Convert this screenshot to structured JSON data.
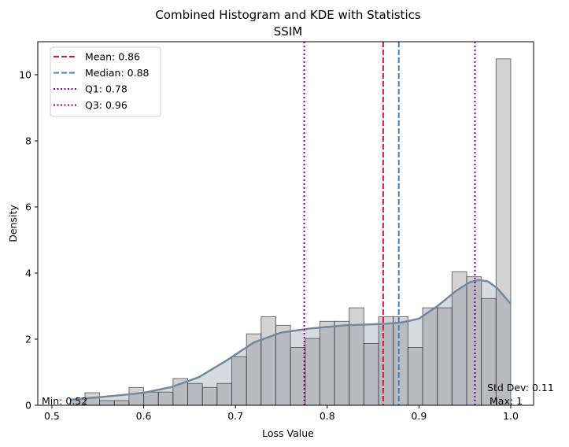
{
  "chart_data": {
    "type": "bar",
    "title": "Combined Histogram and KDE with Statistics",
    "subtitle": "SSIM",
    "xlabel": "Loss Value",
    "ylabel": "Density",
    "xlim": [
      0.4846,
      1.0249
    ],
    "ylim": [
      0,
      11.0
    ],
    "xticks": [
      "0.5",
      "0.6",
      "0.7",
      "0.8",
      "0.9",
      "1.0"
    ],
    "xtick_values": [
      0.5,
      0.6,
      0.7,
      0.8,
      0.9,
      1.0
    ],
    "yticks": [
      "0",
      "2",
      "4",
      "6",
      "8",
      "10"
    ],
    "ytick_values": [
      0,
      2,
      4,
      6,
      8,
      10
    ],
    "grid": false,
    "legend_position": "top-left",
    "histogram": {
      "bin_start": 0.52,
      "bin_width": 0.016,
      "density": [
        0.19,
        0.38,
        0.14,
        0.14,
        0.54,
        0.4,
        0.4,
        0.81,
        0.66,
        0.54,
        0.66,
        1.47,
        2.16,
        2.68,
        2.42,
        1.75,
        2.02,
        2.54,
        2.54,
        2.95,
        1.87,
        2.68,
        2.68,
        1.75,
        2.95,
        2.95,
        4.04,
        3.89,
        3.23,
        10.48
      ],
      "color": "#808080"
    },
    "kde": {
      "x": [
        0.52,
        0.55,
        0.58,
        0.6,
        0.63,
        0.66,
        0.69,
        0.72,
        0.75,
        0.78,
        0.82,
        0.86,
        0.88,
        0.9,
        0.92,
        0.94,
        0.955,
        0.965,
        0.975,
        0.985,
        1.0
      ],
      "y": [
        0.17,
        0.24,
        0.32,
        0.38,
        0.55,
        0.85,
        1.35,
        1.9,
        2.2,
        2.32,
        2.42,
        2.46,
        2.5,
        2.62,
        3.0,
        3.45,
        3.72,
        3.79,
        3.75,
        3.55,
        3.07
      ],
      "color": "#778899"
    },
    "reference_lines": [
      {
        "label": "Mean: 0.86",
        "value": 0.861,
        "color": "#dc143c",
        "style": "dashed"
      },
      {
        "label": "Median: 0.88",
        "value": 0.878,
        "color": "#4682b4",
        "style": "dashed"
      },
      {
        "label": "Q1: 0.78",
        "value": 0.775,
        "color": "#800080",
        "style": "dotted"
      },
      {
        "label": "Q3: 0.96",
        "value": 0.961,
        "color": "#800080",
        "style": "dotted"
      }
    ],
    "annotations": {
      "min": "Min: 0.52",
      "max": "Max: 1",
      "std": "Std Dev: 0.11"
    }
  }
}
